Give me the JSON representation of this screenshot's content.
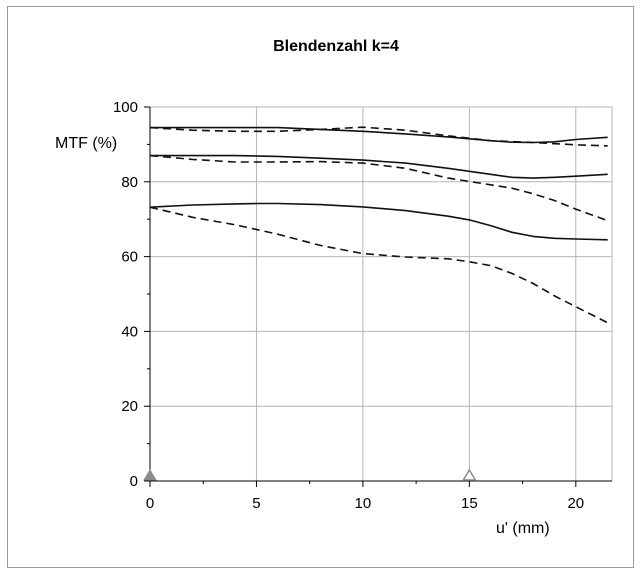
{
  "chart_data": {
    "type": "line",
    "title": "Blendenzahl k=4",
    "xlabel": "u' (mm)",
    "ylabel": "MTF (%)",
    "xlim": [
      0,
      21.7
    ],
    "ylim": [
      0,
      100
    ],
    "xticks": [
      0,
      5,
      10,
      15,
      20
    ],
    "yticks": [
      0,
      20,
      40,
      60,
      80,
      100
    ],
    "grid": true,
    "markers": [
      {
        "x": 0,
        "style": "filled-triangle"
      },
      {
        "x": 15,
        "style": "open-triangle"
      }
    ],
    "series": [
      {
        "line": "solid",
        "x": [
          0,
          2,
          4,
          6,
          8,
          10,
          12,
          14,
          16,
          17,
          18,
          19,
          20,
          21.5
        ],
        "values": [
          94.5,
          94.5,
          94.5,
          94.5,
          94.0,
          93.5,
          92.8,
          92.0,
          91.0,
          90.6,
          90.5,
          90.7,
          91.3,
          91.9
        ]
      },
      {
        "line": "dashed",
        "x": [
          0,
          2,
          4,
          6,
          8,
          10,
          12,
          14,
          16,
          18,
          20,
          21.5
        ],
        "values": [
          94.5,
          93.8,
          93.5,
          93.5,
          94.0,
          94.6,
          93.8,
          92.3,
          91.0,
          90.5,
          89.9,
          89.6
        ]
      },
      {
        "line": "solid",
        "x": [
          0,
          2,
          4,
          6,
          8,
          10,
          12,
          14,
          16,
          17,
          18,
          19,
          20,
          21.5
        ],
        "values": [
          87.0,
          87.0,
          87.0,
          86.8,
          86.3,
          85.8,
          85.0,
          83.6,
          82.0,
          81.2,
          81.0,
          81.2,
          81.5,
          82.0
        ]
      },
      {
        "line": "dashed",
        "x": [
          0,
          2,
          4,
          6,
          8,
          10,
          12,
          14,
          16,
          17,
          18,
          19,
          20,
          21.5
        ],
        "values": [
          87.0,
          86.0,
          85.3,
          85.3,
          85.4,
          85.0,
          83.6,
          81.0,
          79.2,
          78.3,
          76.8,
          75.0,
          72.7,
          69.6
        ]
      },
      {
        "line": "solid",
        "x": [
          0,
          2,
          4,
          5,
          6,
          8,
          10,
          12,
          14,
          15,
          16,
          17,
          18,
          19,
          20,
          21.5
        ],
        "values": [
          73.2,
          73.8,
          74.1,
          74.2,
          74.2,
          73.9,
          73.3,
          72.3,
          70.8,
          69.8,
          68.3,
          66.5,
          65.4,
          64.9,
          64.7,
          64.5
        ]
      },
      {
        "line": "dashed",
        "x": [
          0,
          2,
          4,
          6,
          8,
          10,
          12,
          14,
          15,
          16,
          17,
          18,
          19,
          20,
          21.5
        ],
        "values": [
          73.2,
          70.5,
          68.5,
          66.0,
          63.0,
          60.8,
          59.9,
          59.4,
          58.6,
          57.6,
          55.5,
          52.8,
          49.5,
          46.6,
          42.3
        ]
      }
    ]
  }
}
